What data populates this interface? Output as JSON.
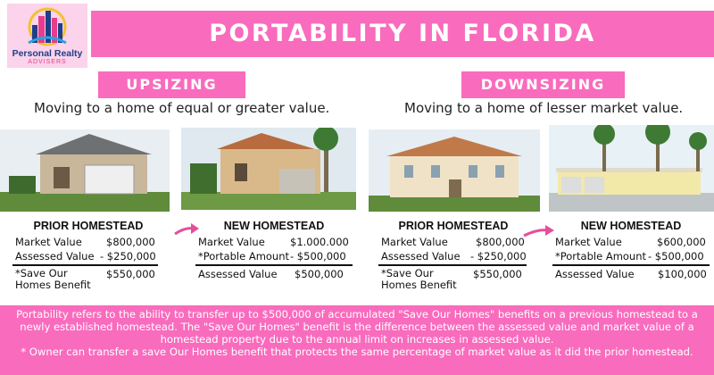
{
  "brand": {
    "name": "Personal Realty",
    "sub": "ADVISERS",
    "colors": {
      "pink": "#f96bbd",
      "navy": "#1e3f8a"
    }
  },
  "title": "PORTABILITY IN FLORIDA",
  "upsizing": {
    "label": "UPSIZING",
    "description": "Moving to a home of equal or greater value.",
    "prior": {
      "heading": "PRIOR HOMESTEAD",
      "rows": [
        {
          "label": "Market Value",
          "value": "$800,000"
        },
        {
          "label": "Assessed Value",
          "value": "- $250,000"
        },
        {
          "label": "*Save Our Homes Benefit",
          "value": "$550,000"
        }
      ]
    },
    "new": {
      "heading": "NEW HOMESTEAD",
      "rows": [
        {
          "label": "Market Value",
          "value": "$1.000.000"
        },
        {
          "label": "*Portable Amount",
          "value": "- $500,000"
        },
        {
          "label": "Assessed Value",
          "value": "$500,000"
        }
      ]
    }
  },
  "downsizing": {
    "label": "DOWNSIZING",
    "description": "Moving to a home of lesser market value.",
    "prior": {
      "heading": "PRIOR HOMESTEAD",
      "rows": [
        {
          "label": "Market Value",
          "value": "$800,000"
        },
        {
          "label": "Assessed Value",
          "value": "- $250,000"
        },
        {
          "label": "*Save Our Homes Benefit",
          "value": "$550,000"
        }
      ]
    },
    "new": {
      "heading": "NEW HOMESTEAD",
      "rows": [
        {
          "label": "Market Value",
          "value": "$600,000"
        },
        {
          "label": "*Portable Amount",
          "value": "- $500,000"
        },
        {
          "label": "Assessed Value",
          "value": "$100,000"
        }
      ]
    }
  },
  "footer": {
    "text1": "Portability refers to the ability to transfer up to $500,000 of accumulated \"Save Our Homes\" benefits on a previous homestead to a newly established homestead. The \"Save Our Homes\" benefit is the difference between the assessed value and market value of a homestead property due to the annual limit on increases in assessed value.",
    "text2": "* Owner can transfer a save Our Homes benefit that protects the same percentage of market value as it did the prior homestead."
  },
  "icons": [
    "pink-arrow-icon"
  ]
}
